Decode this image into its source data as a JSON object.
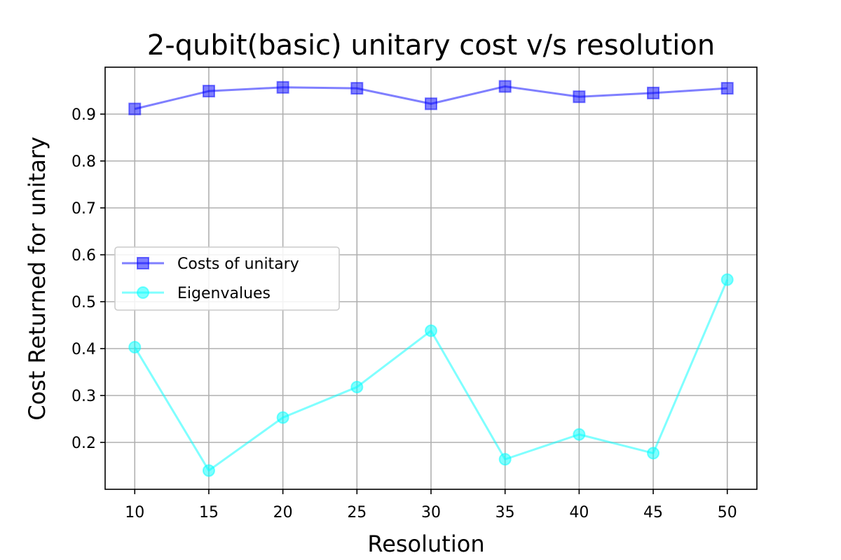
{
  "chart_data": {
    "type": "line",
    "title": "2-qubit(basic) unitary cost v/s resolution",
    "xlabel": "Resolution",
    "ylabel": "Cost Returned for unitary",
    "x": [
      10,
      15,
      20,
      25,
      30,
      35,
      40,
      45,
      50
    ],
    "xticks": [
      "10",
      "15",
      "20",
      "25",
      "30",
      "35",
      "40",
      "45",
      "50"
    ],
    "yticks": [
      "0.2",
      "0.3",
      "0.4",
      "0.5",
      "0.6",
      "0.7",
      "0.8",
      "0.9"
    ],
    "xlim": [
      8,
      52
    ],
    "ylim": [
      0.1,
      1.0
    ],
    "grid": true,
    "legend_position": "center-left",
    "series": [
      {
        "name": "Costs of unitary",
        "marker": "square",
        "color": "#0000ff",
        "values": [
          0.911,
          0.949,
          0.957,
          0.955,
          0.922,
          0.959,
          0.937,
          0.945,
          0.955
        ]
      },
      {
        "name": "Eigenvalues",
        "marker": "circle",
        "color": "#00ffff",
        "values": [
          0.403,
          0.14,
          0.253,
          0.318,
          0.438,
          0.164,
          0.217,
          0.177,
          0.547
        ]
      }
    ]
  }
}
